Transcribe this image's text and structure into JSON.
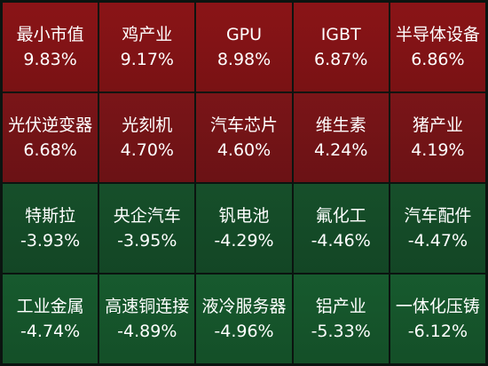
{
  "chart_data": {
    "type": "heatmap",
    "title": "",
    "cells": [
      {
        "name": "最小市值",
        "change": "9.83%",
        "value": 9.83,
        "color": "#8a1417"
      },
      {
        "name": "鸡产业",
        "change": "9.17%",
        "value": 9.17,
        "color": "#8a1417"
      },
      {
        "name": "GPU",
        "change": "8.98%",
        "value": 8.98,
        "color": "#8a1417"
      },
      {
        "name": "IGBT",
        "change": "6.87%",
        "value": 6.87,
        "color": "#8a1417"
      },
      {
        "name": "半导体设备",
        "change": "6.86%",
        "value": 6.86,
        "color": "#8a1417"
      },
      {
        "name": "光伏逆变器",
        "change": "6.68%",
        "value": 6.68,
        "color": "#7a1518"
      },
      {
        "name": "光刻机",
        "change": "4.70%",
        "value": 4.7,
        "color": "#7a1518"
      },
      {
        "name": "汽车芯片",
        "change": "4.60%",
        "value": 4.6,
        "color": "#7a1518"
      },
      {
        "name": "维生素",
        "change": "4.24%",
        "value": 4.24,
        "color": "#7a1518"
      },
      {
        "name": "猪产业",
        "change": "4.19%",
        "value": 4.19,
        "color": "#7a1518"
      },
      {
        "name": "特斯拉",
        "change": "-3.93%",
        "value": -3.93,
        "color": "#164f2a"
      },
      {
        "name": "央企汽车",
        "change": "-3.95%",
        "value": -3.95,
        "color": "#164f2a"
      },
      {
        "name": "钒电池",
        "change": "-4.29%",
        "value": -4.29,
        "color": "#164f2a"
      },
      {
        "name": "氟化工",
        "change": "-4.46%",
        "value": -4.46,
        "color": "#164f2a"
      },
      {
        "name": "汽车配件",
        "change": "-4.47%",
        "value": -4.47,
        "color": "#164f2a"
      },
      {
        "name": "工业金属",
        "change": "-4.74%",
        "value": -4.74,
        "color": "#175a2e"
      },
      {
        "name": "高速铜连接",
        "change": "-4.89%",
        "value": -4.89,
        "color": "#175a2e"
      },
      {
        "name": "液冷服务器",
        "change": "-4.96%",
        "value": -4.96,
        "color": "#175a2e"
      },
      {
        "name": "铝产业",
        "change": "-5.33%",
        "value": -5.33,
        "color": "#175a2e"
      },
      {
        "name": "一体化压铸",
        "change": "-6.12%",
        "value": -6.12,
        "color": "#175a2e"
      }
    ]
  }
}
